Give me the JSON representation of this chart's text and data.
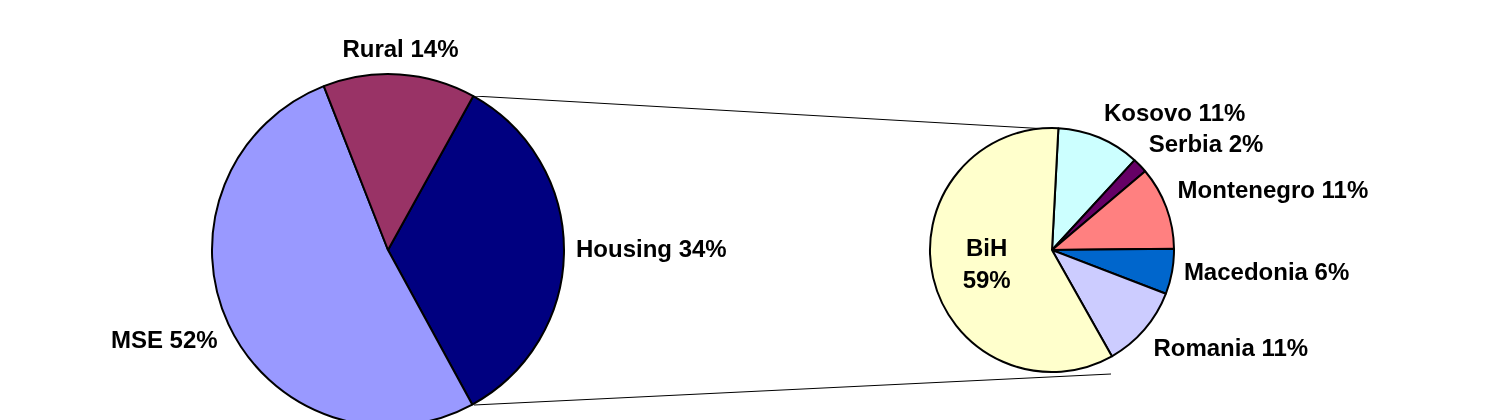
{
  "chart_data": [
    {
      "type": "pie",
      "categories": [
        "Housing",
        "MSE",
        "Rural"
      ],
      "values": [
        34,
        52,
        14
      ],
      "value_labels": [
        "34%",
        "52%",
        "14%"
      ],
      "colors": [
        "#000080",
        "#9999ff",
        "#993366"
      ],
      "legend": false
    },
    {
      "type": "pie",
      "categories": [
        "Kosovo",
        "Serbia",
        "Montenegro",
        "Macedonia",
        "Romania",
        "BiH"
      ],
      "values": [
        11,
        2,
        11,
        6,
        11,
        59
      ],
      "value_labels": [
        "11%",
        "2%",
        "11%",
        "6%",
        "11%",
        "59%"
      ],
      "colors": [
        "#ccffff",
        "#660066",
        "#ff8080",
        "#0066cc",
        "#ccccff",
        "#ffffcc"
      ],
      "legend": false
    }
  ]
}
